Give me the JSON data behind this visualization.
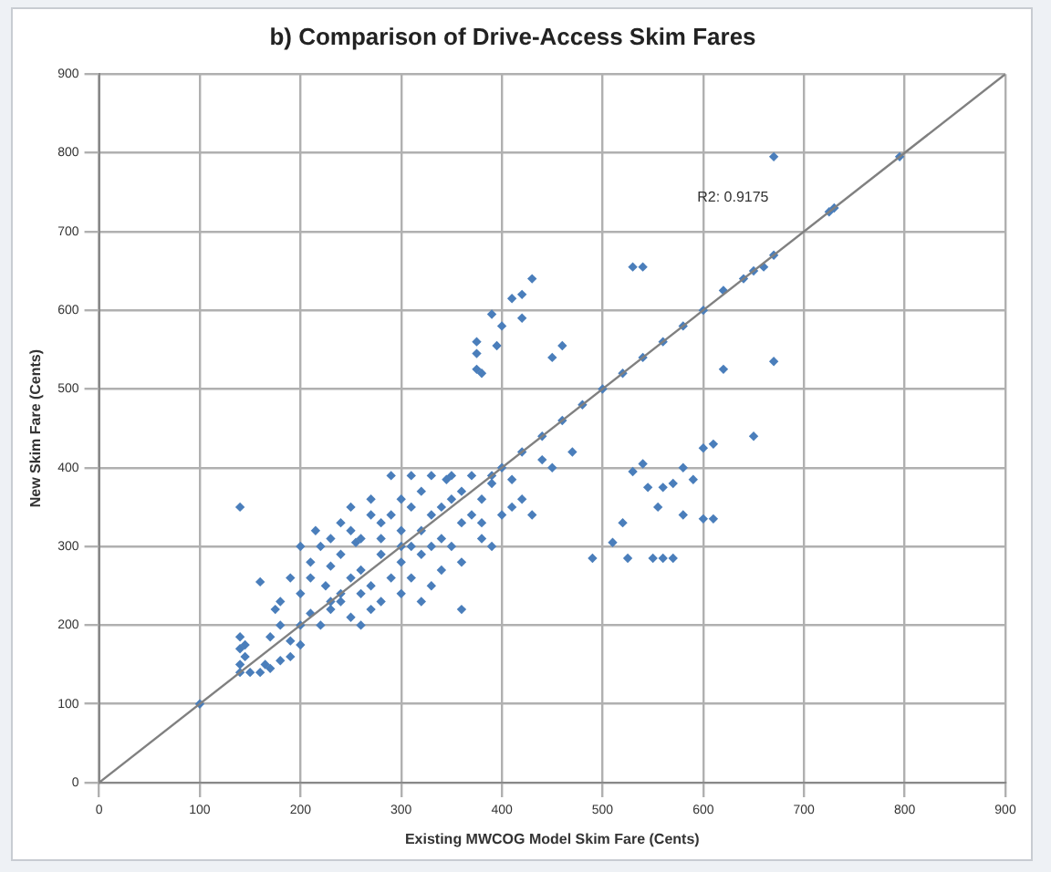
{
  "chart_data": {
    "type": "scatter",
    "title": "b) Comparison of Drive-Access Skim Fares",
    "xlabel": "Existing MWCOG Model Skim Fare (Cents)",
    "ylabel": "New Skim Fare (Cents)",
    "annotations": [
      "R2: 0.9175"
    ],
    "xlim": [
      0,
      900
    ],
    "ylim": [
      0,
      900
    ],
    "xticks": [
      0,
      100,
      200,
      300,
      400,
      500,
      600,
      700,
      800,
      900
    ],
    "yticks": [
      0,
      100,
      200,
      300,
      400,
      500,
      600,
      700,
      800,
      900
    ],
    "grid": true,
    "legend": false,
    "marker": "diamond",
    "series": [
      {
        "type": "scatter",
        "color": "#4a7ebb",
        "x": [
          100,
          140,
          670,
          795,
          730,
          725,
          670,
          660,
          650,
          640,
          620,
          600,
          580,
          560,
          540,
          520,
          500,
          480,
          460,
          440,
          420,
          400,
          530,
          540,
          420,
          410,
          430,
          460,
          450,
          390,
          400,
          380,
          375,
          375,
          375,
          395,
          420,
          620,
          670,
          600,
          610,
          650,
          530,
          540,
          580,
          590,
          520,
          525,
          550,
          560,
          570,
          600,
          610,
          490,
          510,
          470,
          450,
          440,
          430,
          360,
          360,
          270,
          330,
          350,
          370,
          390,
          410,
          420,
          410,
          560,
          545,
          570,
          555,
          580,
          140,
          140,
          145,
          140,
          150,
          160,
          170,
          145,
          140,
          165,
          180,
          190,
          170,
          190,
          200,
          210,
          175,
          180,
          160,
          190,
          200,
          210,
          220,
          210,
          230,
          230,
          240,
          250,
          250,
          240,
          230,
          220,
          260,
          270,
          260,
          280,
          290,
          300,
          310,
          320,
          300,
          280,
          270,
          290,
          300,
          310,
          320,
          330,
          340,
          350,
          360,
          320,
          330,
          340,
          350,
          310,
          300,
          280,
          260,
          250,
          330,
          320,
          360,
          380,
          370,
          380,
          390,
          310,
          290,
          270,
          250,
          240,
          225,
          200,
          180,
          260,
          340,
          390,
          400,
          380,
          280,
          300,
          240,
          230,
          200,
          215,
          255,
          345
        ],
        "values": [
          100,
          350,
          795,
          795,
          730,
          725,
          670,
          655,
          650,
          640,
          625,
          600,
          580,
          560,
          540,
          520,
          500,
          480,
          460,
          440,
          420,
          400,
          655,
          655,
          620,
          615,
          640,
          555,
          540,
          595,
          580,
          520,
          525,
          545,
          560,
          555,
          590,
          525,
          535,
          425,
          430,
          440,
          395,
          405,
          400,
          385,
          330,
          285,
          285,
          285,
          285,
          335,
          335,
          285,
          305,
          420,
          400,
          410,
          340,
          330,
          220,
          220,
          390,
          390,
          390,
          390,
          385,
          360,
          350,
          375,
          375,
          380,
          350,
          340,
          140,
          150,
          160,
          170,
          140,
          140,
          145,
          175,
          185,
          150,
          155,
          160,
          185,
          180,
          200,
          215,
          220,
          230,
          255,
          260,
          240,
          260,
          300,
          280,
          310,
          275,
          290,
          320,
          260,
          230,
          220,
          200,
          270,
          340,
          310,
          330,
          340,
          360,
          350,
          370,
          320,
          290,
          250,
          260,
          280,
          300,
          320,
          340,
          350,
          360,
          370,
          290,
          300,
          310,
          300,
          260,
          240,
          230,
          200,
          210,
          250,
          230,
          280,
          330,
          340,
          360,
          380,
          390,
          390,
          360,
          350,
          330,
          250,
          175,
          200,
          240,
          270,
          300,
          340,
          310,
          310,
          300,
          240,
          230,
          300,
          320,
          305,
          385
        ]
      },
      {
        "type": "line",
        "color": "#808080",
        "x": [
          0,
          900
        ],
        "values": [
          0,
          900
        ],
        "marker": "none"
      }
    ]
  }
}
